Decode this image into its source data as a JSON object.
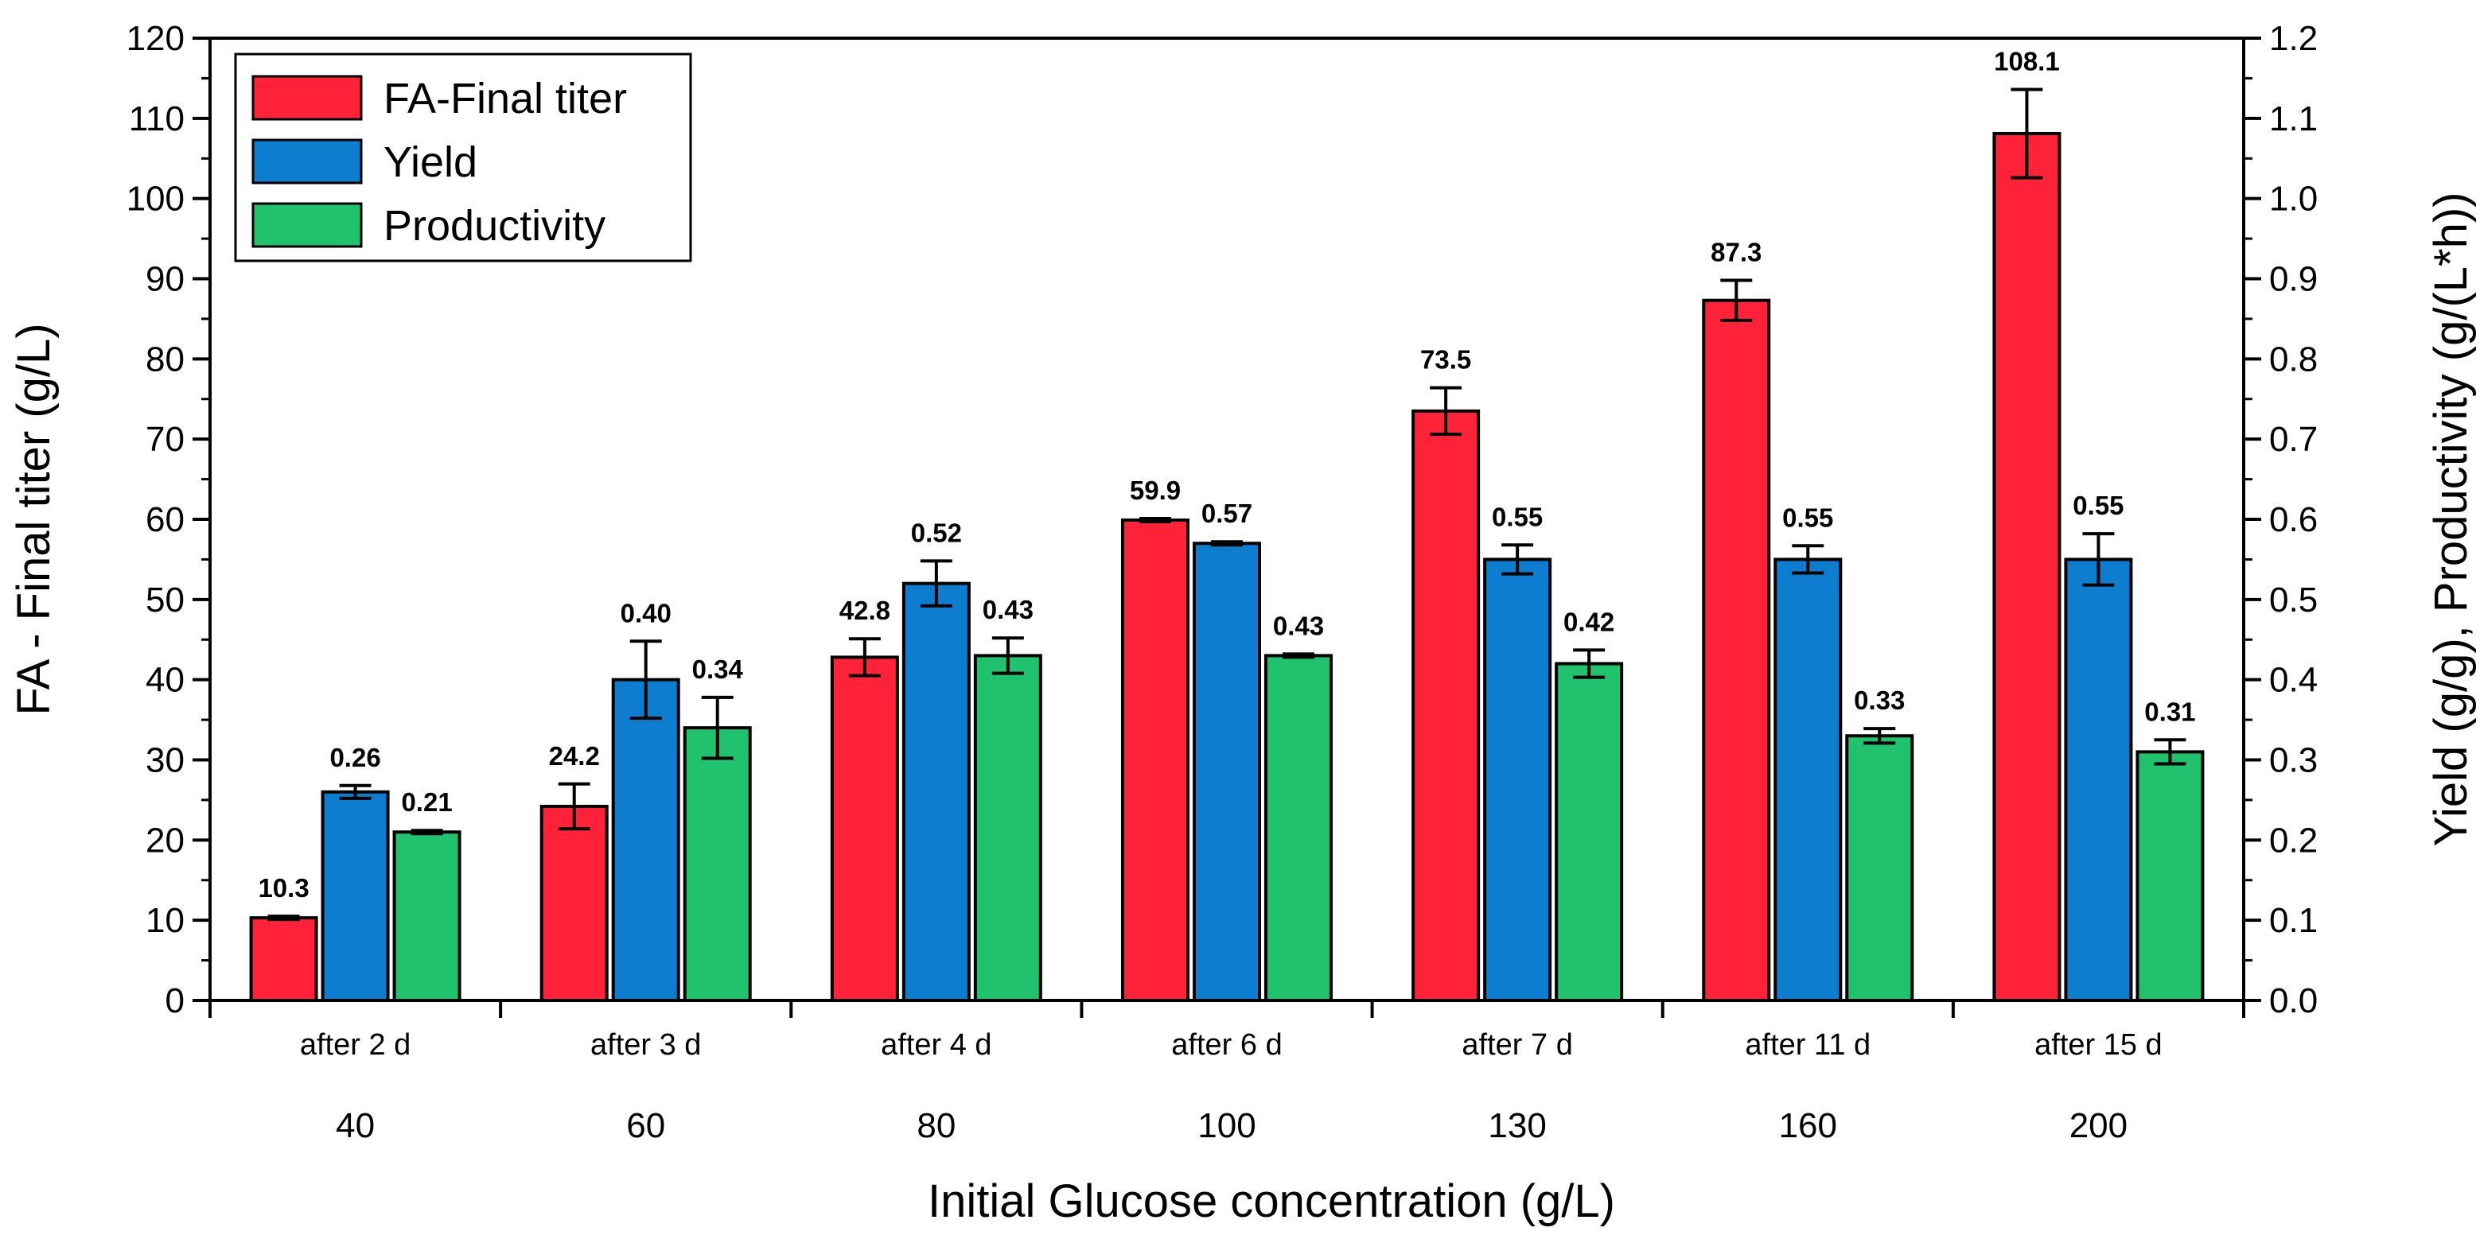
{
  "chart_data": {
    "type": "bar",
    "xlabel": "Initial Glucose concentration (g/L)",
    "ylabel": "FA - Final titer (g/L)",
    "y2label": "Yield (g/g), Productivity (g/(L*h))",
    "ylim": [
      0,
      120
    ],
    "y2lim": [
      0,
      1.2
    ],
    "yticks": [
      "0",
      "10",
      "20",
      "30",
      "40",
      "50",
      "60",
      "70",
      "80",
      "90",
      "100",
      "110",
      "120"
    ],
    "y2ticks": [
      "0.0",
      "0.1",
      "0.2",
      "0.3",
      "0.4",
      "0.5",
      "0.6",
      "0.7",
      "0.8",
      "0.9",
      "1.0",
      "1.1",
      "1.2"
    ],
    "categories": [
      "40",
      "60",
      "80",
      "100",
      "130",
      "160",
      "200"
    ],
    "sublabels": [
      "after 2 d",
      "after 3 d",
      "after 4 d",
      "after 6 d",
      "after 7 d",
      "after 11 d",
      "after 15 d"
    ],
    "legend_position": "top-left",
    "grid": false,
    "series": [
      {
        "name": "FA-Final titer",
        "axis": "left",
        "color": "#ff2238",
        "values": [
          10.3,
          24.2,
          42.8,
          59.9,
          73.5,
          87.3,
          108.1
        ],
        "errors": [
          0.2,
          2.8,
          2.3,
          0.2,
          2.9,
          2.5,
          5.5
        ],
        "labels": [
          "10.3",
          "24.2",
          "42.8",
          "59.9",
          "73.5",
          "87.3",
          "108.1"
        ]
      },
      {
        "name": "Yield",
        "axis": "right",
        "color": "#0d7dcf",
        "values": [
          0.26,
          0.4,
          0.52,
          0.57,
          0.55,
          0.55,
          0.55
        ],
        "errors": [
          0.008,
          0.048,
          0.028,
          0.002,
          0.018,
          0.017,
          0.032
        ],
        "labels": [
          "0.26",
          "0.40",
          "0.52",
          "0.57",
          "0.55",
          "0.55",
          "0.55"
        ]
      },
      {
        "name": "Productivity",
        "axis": "right",
        "color": "#21c26e",
        "values": [
          0.21,
          0.34,
          0.43,
          0.43,
          0.42,
          0.33,
          0.31
        ],
        "errors": [
          0.002,
          0.038,
          0.022,
          0.002,
          0.017,
          0.009,
          0.015
        ],
        "labels": [
          "0.21",
          "0.34",
          "0.43",
          "0.43",
          "0.42",
          "0.33",
          "0.31"
        ]
      }
    ]
  }
}
